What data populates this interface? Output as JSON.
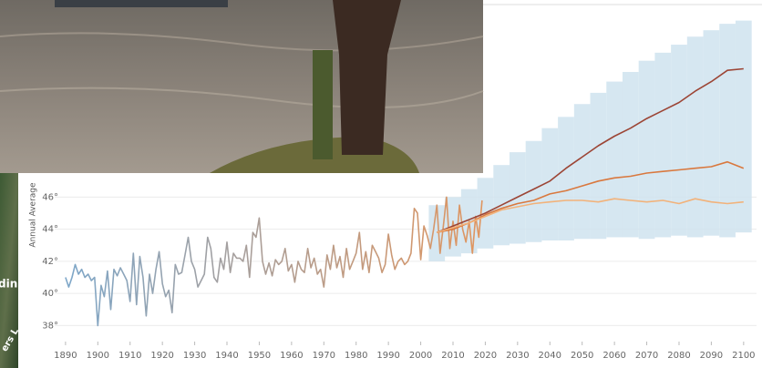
{
  "map_labels": [
    "din",
    "ers L"
  ],
  "chart_data": {
    "type": "line",
    "y_label": "Annual Average",
    "xlim": [
      1881,
      2104
    ],
    "ylim": [
      37,
      58
    ],
    "xticks": [
      1890,
      1900,
      1910,
      1920,
      1930,
      1940,
      1950,
      1960,
      1970,
      1980,
      1990,
      2000,
      2010,
      2020,
      2030,
      2040,
      2050,
      2060,
      2070,
      2080,
      2090,
      2100
    ],
    "yticks": [
      {
        "value": 38,
        "label": "38°"
      },
      {
        "value": 40,
        "label": "40°"
      },
      {
        "value": 42,
        "label": "42°"
      },
      {
        "value": 44,
        "label": "44°"
      },
      {
        "value": 46,
        "label": "46°"
      }
    ],
    "grid": true,
    "band": {
      "color": "#cfe3ef",
      "x": [
        2005,
        2010,
        2015,
        2020,
        2025,
        2030,
        2035,
        2040,
        2045,
        2050,
        2055,
        2060,
        2065,
        2070,
        2075,
        2080,
        2085,
        2090,
        2095,
        2100
      ],
      "lower": [
        42.0,
        42.3,
        42.5,
        42.8,
        43.0,
        43.1,
        43.2,
        43.3,
        43.3,
        43.4,
        43.4,
        43.5,
        43.5,
        43.4,
        43.5,
        43.6,
        43.5,
        43.6,
        43.5,
        43.8
      ],
      "upper": [
        45.5,
        46.0,
        46.5,
        47.2,
        48.0,
        48.8,
        49.5,
        50.3,
        51.0,
        51.8,
        52.5,
        53.2,
        53.8,
        54.5,
        55.0,
        55.5,
        56.0,
        56.4,
        56.8,
        57.0
      ]
    },
    "series": [
      {
        "color": [
          "#7ea7c9",
          "#e0955f"
        ],
        "x": [
          1890,
          1891,
          1892,
          1893,
          1894,
          1895,
          1896,
          1897,
          1898,
          1899,
          1900,
          1901,
          1902,
          1903,
          1904,
          1905,
          1906,
          1907,
          1908,
          1909,
          1910,
          1911,
          1912,
          1913,
          1914,
          1915,
          1916,
          1917,
          1918,
          1919,
          1920,
          1921,
          1922,
          1923,
          1924,
          1925,
          1926,
          1927,
          1928,
          1929,
          1930,
          1931,
          1932,
          1933,
          1934,
          1935,
          1936,
          1937,
          1938,
          1939,
          1940,
          1941,
          1942,
          1943,
          1944,
          1945,
          1946,
          1947,
          1948,
          1949,
          1950,
          1951,
          1952,
          1953,
          1954,
          1955,
          1956,
          1957,
          1958,
          1959,
          1960,
          1961,
          1962,
          1963,
          1964,
          1965,
          1966,
          1967,
          1968,
          1969,
          1970,
          1971,
          1972,
          1973,
          1974,
          1975,
          1976,
          1977,
          1978,
          1979,
          1980,
          1981,
          1982,
          1983,
          1984,
          1985,
          1986,
          1987,
          1988,
          1989,
          1990,
          1991,
          1992,
          1993,
          1994,
          1995,
          1996,
          1997,
          1998,
          1999,
          2000,
          2001,
          2002,
          2003,
          2004,
          2005,
          2006,
          2007,
          2008,
          2009,
          2010,
          2011,
          2012,
          2013,
          2014,
          2015,
          2016,
          2017,
          2018,
          2019
        ],
        "values": [
          41.0,
          40.4,
          41.0,
          41.8,
          41.2,
          41.5,
          41.0,
          41.2,
          40.8,
          41.0,
          38.0,
          40.5,
          39.8,
          41.4,
          39.0,
          41.5,
          41.1,
          41.6,
          41.2,
          40.8,
          39.5,
          42.5,
          39.3,
          42.3,
          41.0,
          38.6,
          41.2,
          40.0,
          41.5,
          42.6,
          40.6,
          39.8,
          40.2,
          38.8,
          41.8,
          41.2,
          41.3,
          42.4,
          43.5,
          42.0,
          41.5,
          40.4,
          40.8,
          41.2,
          43.5,
          42.8,
          41.0,
          40.7,
          42.2,
          41.5,
          43.2,
          41.3,
          42.5,
          42.2,
          42.2,
          42.0,
          43.0,
          41.0,
          43.8,
          43.5,
          44.7,
          42.0,
          41.2,
          41.9,
          41.1,
          42.1,
          41.8,
          42.0,
          42.8,
          41.4,
          41.8,
          40.7,
          42.0,
          41.5,
          41.3,
          42.8,
          41.6,
          42.2,
          41.2,
          41.5,
          40.4,
          42.4,
          41.5,
          43.0,
          41.6,
          42.3,
          41.0,
          42.8,
          41.5,
          42.0,
          42.5,
          43.8,
          41.5,
          42.6,
          41.3,
          43.0,
          42.6,
          42.2,
          41.3,
          41.8,
          43.7,
          42.4,
          41.5,
          42.0,
          42.2,
          41.8,
          42.0,
          42.5,
          45.3,
          45.0,
          42.1,
          44.2,
          43.6,
          42.8,
          44.0,
          45.5,
          42.5,
          44.2,
          46.0,
          42.8,
          44.5,
          43.0,
          45.5,
          44.0,
          43.2,
          44.5,
          42.5,
          44.8,
          43.5,
          45.8
        ]
      },
      {
        "color": "#9c4535",
        "x": [
          2005,
          2010,
          2015,
          2020,
          2025,
          2030,
          2035,
          2040,
          2045,
          2050,
          2055,
          2060,
          2065,
          2070,
          2075,
          2080,
          2085,
          2090,
          2095,
          2100
        ],
        "values": [
          43.8,
          44.2,
          44.6,
          45.0,
          45.5,
          46.0,
          46.5,
          47.0,
          47.8,
          48.5,
          49.2,
          49.8,
          50.3,
          50.9,
          51.4,
          51.9,
          52.6,
          53.2,
          53.9,
          54.0
        ]
      },
      {
        "color": "#d9783e",
        "x": [
          2005,
          2010,
          2015,
          2020,
          2025,
          2030,
          2035,
          2040,
          2045,
          2050,
          2055,
          2060,
          2065,
          2070,
          2075,
          2080,
          2085,
          2090,
          2095,
          2100
        ],
        "values": [
          43.8,
          44.0,
          44.4,
          44.9,
          45.3,
          45.6,
          45.8,
          46.2,
          46.4,
          46.7,
          47.0,
          47.2,
          47.3,
          47.5,
          47.6,
          47.7,
          47.8,
          47.9,
          48.2,
          47.8
        ]
      },
      {
        "color": "#f2b27a",
        "x": [
          2005,
          2010,
          2015,
          2020,
          2025,
          2030,
          2035,
          2040,
          2045,
          2050,
          2055,
          2060,
          2065,
          2070,
          2075,
          2080,
          2085,
          2090,
          2095,
          2100
        ],
        "values": [
          43.8,
          44.1,
          44.4,
          44.8,
          45.2,
          45.4,
          45.6,
          45.7,
          45.8,
          45.8,
          45.7,
          45.9,
          45.8,
          45.7,
          45.8,
          45.6,
          45.9,
          45.7,
          45.6,
          45.7
        ]
      }
    ]
  }
}
